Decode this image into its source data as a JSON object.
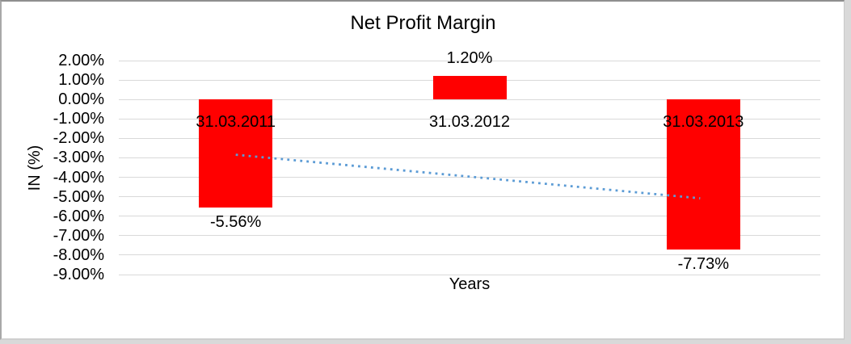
{
  "chart_data": {
    "type": "bar",
    "title": "Net Profit Margin",
    "xlabel": "Years",
    "ylabel": "IN (%)",
    "categories": [
      "31.03.2011",
      "31.03.2012",
      "31.03.2013"
    ],
    "series": [
      {
        "name": "Net Profit Margin",
        "values": [
          -5.56,
          1.2,
          -7.73
        ]
      }
    ],
    "value_labels": [
      "-5.56%",
      "1.20%",
      "-7.73%"
    ],
    "ylim": [
      -9,
      2
    ],
    "y_tick_values": [
      2,
      1,
      0,
      -1,
      -2,
      -3,
      -4,
      -5,
      -6,
      -7,
      -8,
      -9
    ],
    "y_tick_labels": [
      "2.00%",
      "1.00%",
      "0.00%",
      "-1.00%",
      "-2.00%",
      "-3.00%",
      "-4.00%",
      "-5.00%",
      "-6.00%",
      "-7.00%",
      "-8.00%",
      "-9.00%"
    ],
    "grid": true,
    "legend": "none",
    "colors": {
      "bar_fill": "#ff0000",
      "gridline": "#d9d9d9",
      "trendline": "#5b9bd5",
      "text": "#000000"
    },
    "trendline": {
      "type": "linear",
      "line_style": "dotted",
      "start_value": -2.84,
      "end_value": -5.08
    }
  }
}
